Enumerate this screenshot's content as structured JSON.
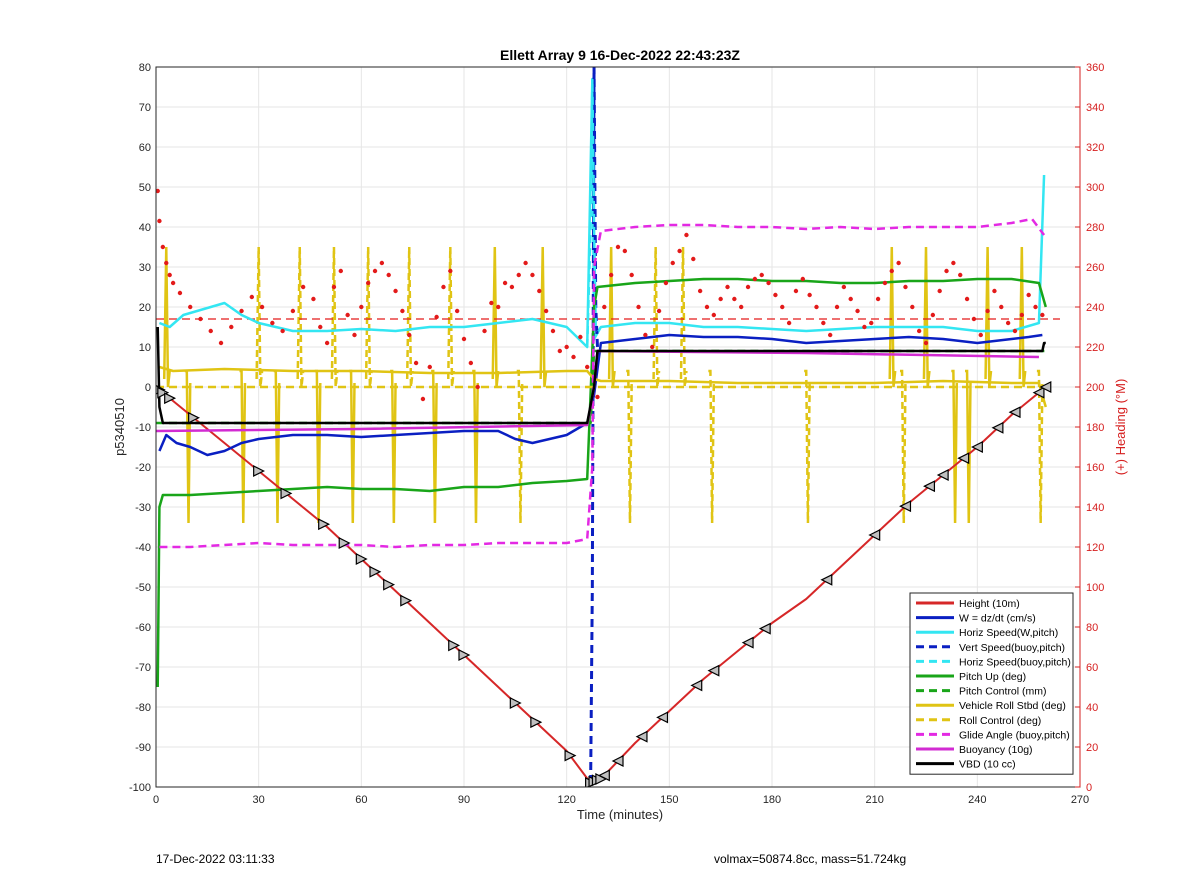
{
  "chart_data": {
    "type": "line",
    "title": "Ellett Array 9 16-Dec-2022 22:43:23Z",
    "xlabel": "Time (minutes)",
    "ylabel_left": "p5340510",
    "ylabel_right": "(+) Heading (°M)",
    "xlim": [
      0,
      270
    ],
    "ylim_left": [
      -100,
      80
    ],
    "ylim_right": [
      0,
      360
    ],
    "xticks": [
      "0",
      "30",
      "60",
      "90",
      "120",
      "150",
      "180",
      "210",
      "240",
      "270"
    ],
    "yticks_left": [
      "-100",
      "-90",
      "-80",
      "-70",
      "-60",
      "-50",
      "-40",
      "-30",
      "-20",
      "-10",
      "0",
      "10",
      "20",
      "30",
      "40",
      "50",
      "60",
      "70",
      "80"
    ],
    "yticks_right": [
      "0",
      "20",
      "40",
      "60",
      "80",
      "100",
      "120",
      "140",
      "160",
      "180",
      "200",
      "220",
      "240",
      "260",
      "280",
      "300",
      "320",
      "340",
      "360"
    ],
    "grid": true,
    "legend_position": "bottom-right",
    "colors": {
      "height": "#d62728",
      "w": "#0a1fc2",
      "horiz": "#33e6f2",
      "pitch": "#19a519",
      "roll": "#e0c414",
      "glide": "#e329e3",
      "buoyancy": "#d22bd2",
      "vbd": "#000000",
      "heading": "#e31a1a",
      "right_axis": "#d62020"
    },
    "series": [
      {
        "name": "Height (10m)",
        "style": "solid",
        "color": "#d62728",
        "x": [
          0,
          5,
          10,
          20,
          30,
          40,
          50,
          60,
          70,
          80,
          90,
          100,
          110,
          120,
          127,
          130,
          140,
          150,
          160,
          170,
          180,
          190,
          200,
          210,
          220,
          230,
          240,
          250,
          260
        ],
        "y": [
          0,
          -3.5,
          -7,
          -14,
          -21,
          -28,
          -35,
          -43,
          -51,
          -59,
          -67,
          -75,
          -83,
          -91,
          -99,
          -98,
          -89,
          -81,
          -73,
          -66,
          -59,
          -53,
          -45,
          -37,
          -29,
          -22,
          -15,
          -7,
          0
        ]
      },
      {
        "name": "W = dz/dt (cm/s)",
        "style": "solid",
        "color": "#0a1fc2",
        "x": [
          1,
          3,
          6,
          10,
          15,
          20,
          25,
          30,
          40,
          50,
          60,
          70,
          80,
          90,
          100,
          105,
          110,
          120,
          126,
          128,
          130,
          140,
          150,
          160,
          170,
          180,
          190,
          200,
          210,
          220,
          230,
          240,
          250,
          255,
          259
        ],
        "y": [
          -16,
          -12,
          -14,
          -15,
          -17,
          -16,
          -14,
          -13,
          -12,
          -12,
          -12.5,
          -12,
          -11.5,
          -11,
          -11,
          -13,
          -14,
          -12,
          -9,
          -2,
          11,
          12,
          13,
          12.5,
          12.5,
          12,
          11,
          11.5,
          12,
          12.5,
          12,
          11,
          12,
          12.5,
          13
        ]
      },
      {
        "name": "Horiz Speed(W,pitch)",
        "style": "solid",
        "color": "#33e6f2",
        "x": [
          1,
          4,
          8,
          12,
          16,
          20,
          25,
          30,
          40,
          50,
          60,
          70,
          80,
          90,
          100,
          110,
          120,
          126,
          127.5,
          128,
          130,
          140,
          150,
          160,
          170,
          180,
          190,
          200,
          210,
          220,
          230,
          240,
          250,
          258,
          259.5
        ],
        "y": [
          16,
          15,
          18,
          19,
          20,
          21,
          18,
          16,
          14,
          14,
          14.5,
          14,
          15,
          15,
          16,
          17,
          15,
          10,
          77,
          12,
          15,
          16,
          16,
          15,
          15,
          14.5,
          14,
          14.5,
          15,
          15,
          15,
          14,
          14,
          16,
          53
        ]
      },
      {
        "name": "Vert Speed(buoy,pitch)",
        "style": "dashed",
        "color": "#0a1fc2",
        "x": [
          127,
          127.5,
          128,
          128.5,
          129
        ],
        "y": [
          -99,
          -50,
          80,
          20,
          10
        ]
      },
      {
        "name": "Horiz Speed(buoy,pitch)",
        "style": "dashed",
        "color": "#33e6f2",
        "x": [
          126,
          127,
          127.5,
          128,
          128.5,
          129
        ],
        "y": [
          10,
          40,
          77,
          40,
          15,
          14
        ]
      },
      {
        "name": "Pitch Up (deg)",
        "style": "solid",
        "color": "#19a519",
        "x": [
          0.5,
          1,
          2,
          5,
          10,
          20,
          30,
          40,
          50,
          60,
          70,
          80,
          90,
          100,
          110,
          120,
          126,
          128,
          129,
          140,
          150,
          160,
          170,
          180,
          190,
          200,
          210,
          220,
          230,
          240,
          250,
          258,
          260
        ],
        "y": [
          -75,
          -30,
          -27,
          -27,
          -27,
          -26.5,
          -26,
          -25.5,
          -25,
          -25.5,
          -25.5,
          -26,
          -25,
          -25,
          -24,
          -23.5,
          -23,
          20,
          25,
          26,
          26.5,
          27,
          27,
          26.5,
          26.5,
          26,
          26,
          26.5,
          26.5,
          27,
          27,
          26,
          20
        ]
      },
      {
        "name": "Pitch Control (mm)",
        "style": "dashed",
        "color": "#19a519",
        "x": [
          0,
          5,
          120,
          127,
          128,
          130,
          260
        ],
        "y": [
          -9,
          -9,
          -9,
          -9,
          9,
          9,
          9
        ]
      },
      {
        "name": "Vehicle Roll Stbd (deg)",
        "style": "solid",
        "color": "#e0c414",
        "x": [
          1,
          5,
          20,
          40,
          60,
          80,
          100,
          120,
          126,
          128,
          130,
          150,
          170,
          190,
          210,
          230,
          250,
          258,
          260
        ],
        "y": [
          5,
          4,
          4.5,
          4,
          4,
          3.5,
          3.5,
          4,
          4,
          2,
          1.5,
          1.5,
          1,
          1,
          1,
          1.5,
          1,
          1,
          -5
        ]
      },
      {
        "name": "Roll Control (deg)",
        "style": "dashed",
        "color": "#e0c414",
        "x": [
          0,
          10,
          50,
          100,
          126,
          128,
          130,
          200,
          260
        ],
        "y": [
          0,
          0,
          0,
          0,
          0,
          0,
          0,
          0,
          0
        ]
      },
      {
        "name": "Glide Angle (buoy,pitch)",
        "style": "dashed",
        "color": "#e329e3",
        "x": [
          1,
          10,
          20,
          30,
          40,
          50,
          60,
          70,
          80,
          90,
          100,
          110,
          120,
          126,
          127.5,
          128,
          130,
          140,
          150,
          160,
          170,
          180,
          190,
          200,
          210,
          220,
          230,
          240,
          250,
          256,
          259.5
        ],
        "y": [
          -40,
          -40,
          -39.5,
          -39,
          -39.5,
          -39.5,
          -39.5,
          -40,
          -39.5,
          -39.5,
          -39,
          -39,
          -39,
          -38,
          -20,
          30,
          39,
          40,
          40.5,
          40.5,
          40,
          40,
          39.5,
          40,
          39.5,
          40,
          40,
          40,
          41,
          42,
          38
        ]
      },
      {
        "name": "Buoyancy (10g)",
        "style": "solid",
        "color": "#d22bd2",
        "x": [
          0,
          60,
          126,
          128,
          129,
          190,
          258
        ],
        "y": [
          -11,
          -10.5,
          -9.5,
          0,
          9,
          8.5,
          7.5
        ]
      },
      {
        "name": "VBD (10 cc)",
        "style": "solid",
        "color": "#000000",
        "x": [
          0.5,
          1,
          2,
          126,
          128,
          129,
          259,
          259.5,
          260
        ],
        "y": [
          15,
          -5,
          -9,
          -9,
          0,
          9,
          9,
          11,
          11
        ]
      }
    ],
    "heading_reference_deg": 234,
    "heading_points": {
      "x": [
        0.5,
        1,
        2,
        3,
        4,
        5,
        7,
        10,
        13,
        16,
        19,
        22,
        25,
        28,
        31,
        34,
        37,
        40,
        43,
        46,
        48,
        50,
        52,
        54,
        56,
        58,
        60,
        62,
        64,
        66,
        68,
        70,
        72,
        74,
        76,
        78,
        80,
        82,
        84,
        86,
        88,
        90,
        92,
        94,
        96,
        98,
        100,
        102,
        104,
        106,
        108,
        110,
        112,
        114,
        116,
        118,
        120,
        122,
        124,
        126,
        129,
        131,
        133,
        135,
        137,
        139,
        141,
        143,
        145,
        147,
        149,
        151,
        153,
        155,
        157,
        159,
        161,
        163,
        165,
        167,
        169,
        171,
        173,
        175,
        177,
        179,
        181,
        183,
        185,
        187,
        189,
        191,
        193,
        195,
        197,
        199,
        201,
        203,
        205,
        207,
        209,
        211,
        213,
        215,
        217,
        219,
        221,
        223,
        225,
        227,
        229,
        231,
        233,
        235,
        237,
        239,
        241,
        243,
        245,
        247,
        249,
        251,
        253,
        255,
        257,
        259
      ],
      "y": [
        298,
        283,
        270,
        262,
        256,
        252,
        247,
        240,
        234,
        228,
        222,
        230,
        238,
        245,
        240,
        232,
        228,
        238,
        250,
        244,
        230,
        222,
        250,
        258,
        236,
        226,
        240,
        252,
        258,
        262,
        256,
        248,
        238,
        226,
        212,
        194,
        210,
        235,
        250,
        258,
        238,
        224,
        212,
        200,
        228,
        242,
        240,
        252,
        250,
        256,
        262,
        256,
        248,
        238,
        228,
        218,
        220,
        215,
        225,
        210,
        195,
        240,
        256,
        270,
        268,
        256,
        240,
        226,
        220,
        238,
        252,
        262,
        268,
        276,
        264,
        248,
        240,
        236,
        244,
        250,
        244,
        240,
        250,
        254,
        256,
        252,
        246,
        240,
        232,
        248,
        254,
        246,
        240,
        232,
        226,
        240,
        250,
        244,
        238,
        230,
        232,
        244,
        252,
        258,
        262,
        250,
        240,
        228,
        222,
        236,
        248,
        258,
        262,
        256,
        244,
        234,
        226,
        238,
        248,
        240,
        232,
        228,
        236,
        246,
        240,
        236
      ]
    },
    "roll_spikes": [
      {
        "x": 3,
        "up": true
      },
      {
        "x": 9,
        "up": false
      },
      {
        "x": 25,
        "up": false
      },
      {
        "x": 30,
        "up": true
      },
      {
        "x": 35,
        "up": false
      },
      {
        "x": 42,
        "up": true
      },
      {
        "x": 47,
        "up": false
      },
      {
        "x": 52,
        "up": true
      },
      {
        "x": 57,
        "up": false
      },
      {
        "x": 62,
        "up": true
      },
      {
        "x": 69,
        "up": false
      },
      {
        "x": 74,
        "up": true
      },
      {
        "x": 81,
        "up": false
      },
      {
        "x": 86,
        "up": true
      },
      {
        "x": 93,
        "up": false
      },
      {
        "x": 99,
        "up": true
      },
      {
        "x": 106,
        "up": false
      },
      {
        "x": 113,
        "up": true
      },
      {
        "x": 133,
        "up": true
      },
      {
        "x": 138,
        "up": false
      },
      {
        "x": 146,
        "up": true
      },
      {
        "x": 154,
        "up": true
      },
      {
        "x": 162,
        "up": false
      },
      {
        "x": 190,
        "up": false
      },
      {
        "x": 215,
        "up": true
      },
      {
        "x": 218,
        "up": false
      },
      {
        "x": 225,
        "up": true
      },
      {
        "x": 233,
        "up": false
      },
      {
        "x": 237,
        "up": false
      },
      {
        "x": 243,
        "up": true
      },
      {
        "x": 253,
        "up": true
      },
      {
        "x": 258,
        "up": false
      }
    ],
    "markers": {
      "descent_x": [
        1,
        2,
        4,
        11,
        30,
        38,
        49,
        55,
        60,
        64,
        68,
        73,
        87,
        90,
        105,
        111,
        121,
        127,
        128,
        129,
        130
      ],
      "ascent_x": [
        131,
        135,
        142,
        148,
        158,
        163,
        173,
        178,
        196,
        210,
        219,
        226,
        230,
        236,
        240,
        246,
        251,
        258,
        260
      ]
    },
    "footer": {
      "left": "17-Dec-2022 03:11:33",
      "right": "volmax=50874.8cc, mass=51.724kg"
    }
  }
}
